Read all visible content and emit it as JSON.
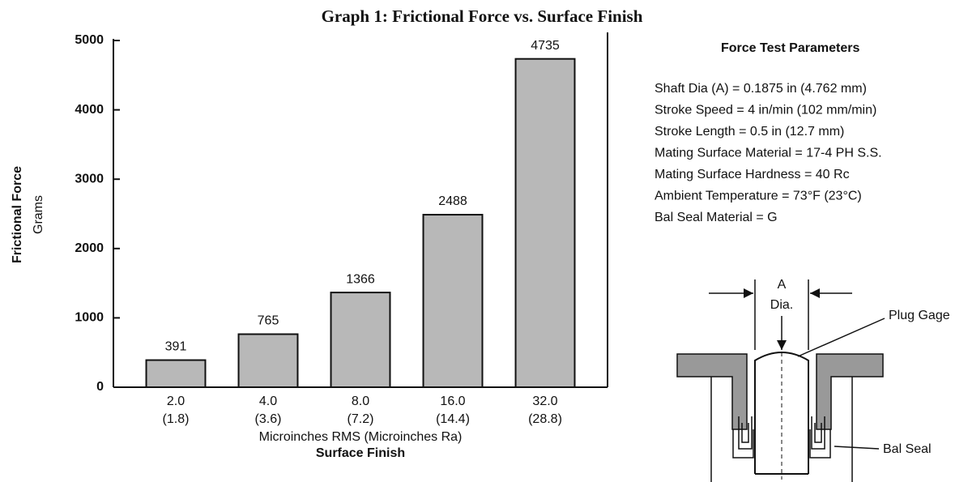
{
  "chart_data": {
    "type": "bar",
    "title": "Graph 1: Frictional Force vs. Surface Finish",
    "categories": [
      "2.0",
      "4.0",
      "8.0",
      "16.0",
      "32.0"
    ],
    "categories_ra": [
      "(1.8)",
      "(3.6)",
      "(7.2)",
      "(14.4)",
      "(28.8)"
    ],
    "values": [
      391,
      765,
      1366,
      2488,
      4735
    ],
    "color": "#b8b8b8",
    "ylim": [
      0,
      5000
    ],
    "yticks": [
      0,
      1000,
      2000,
      3000,
      4000,
      5000
    ],
    "x_label": "Microinches RMS (Microinches Ra)",
    "x_label2": "Surface Finish",
    "y_label": "Frictional Force",
    "y_label2": "Grams"
  },
  "parameters": {
    "title": "Force Test Parameters",
    "items": [
      "Shaft Dia (A) = 0.1875 in (4.762 mm)",
      "Stroke Speed = 4 in/min (102 mm/min)",
      "Stroke Length = 0.5 in (12.7 mm)",
      "Mating Surface Material = 17-4 PH S.S.",
      "Mating Surface Hardness = 40 Rc",
      "Ambient Temperature = 73°F (23°C)",
      "Bal Seal Material = G"
    ]
  },
  "diagram": {
    "dim_label": "A",
    "dim_label2": "Dia.",
    "plug_label": "Plug Gage",
    "seal_label": "Bal Seal"
  }
}
